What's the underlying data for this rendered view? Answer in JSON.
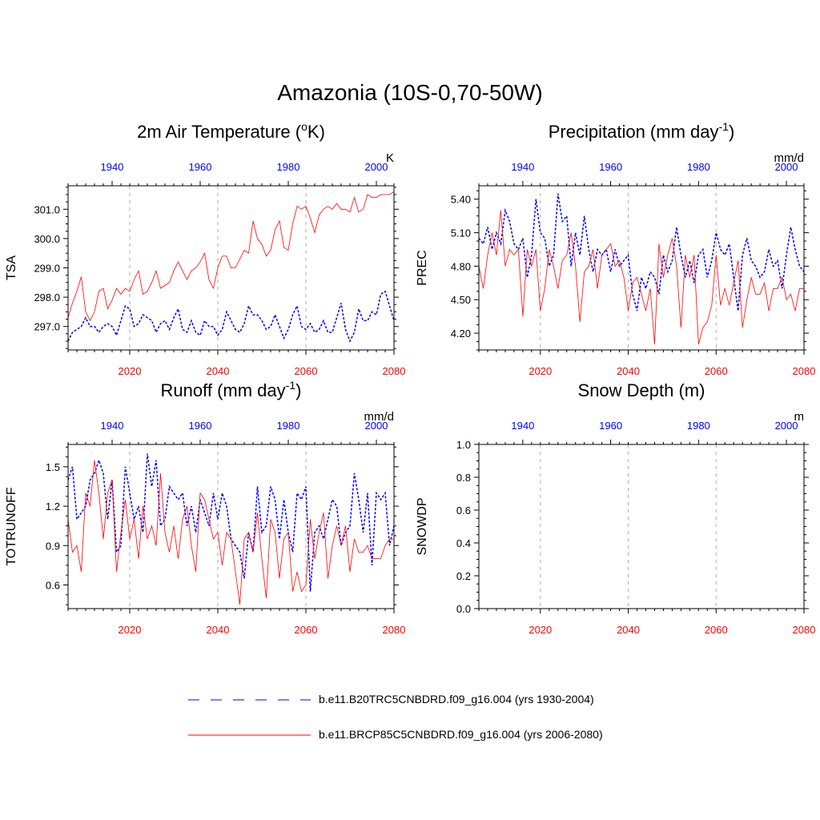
{
  "title": "Amazonia (10S-0,70-50W)",
  "colors": {
    "historical": "#0000ff",
    "future": "#ff0000",
    "grid": "#aaaaaa"
  },
  "legend": [
    {
      "label": "b.e11.B20TRC5CNBDRD.f09_g16.004 (yrs 1930-2004)",
      "color": "#0000ff",
      "style": "dashed"
    },
    {
      "label": "b.e11.BRCP85C5CNBDRD.f09_g16.004 (yrs 2006-2080)",
      "color": "#ff0000",
      "style": "solid"
    }
  ],
  "chart_data": [
    {
      "type": "line",
      "title": "2m Air Temperature (",
      "title_sup": "o",
      "title_after": "K)",
      "unit": "K",
      "ylabel": "TSA",
      "ylim": [
        296.2,
        301.8
      ],
      "yticks": [
        297.0,
        298.0,
        299.0,
        300.0,
        301.0
      ],
      "ytick_labels": [
        "297.0",
        "298.0",
        "299.0",
        "300.0",
        "301.0"
      ],
      "bottom_axis": {
        "range": [
          2006,
          2080
        ],
        "ticks": [
          2020,
          2040,
          2060,
          2080
        ],
        "labels": [
          "2020",
          "2040",
          "2060",
          "2080"
        ]
      },
      "top_axis": {
        "range": [
          1930,
          2004
        ],
        "ticks": [
          1940,
          1960,
          1980,
          2000
        ],
        "labels": [
          "1940",
          "1960",
          "1980",
          "2000"
        ]
      },
      "series": [
        {
          "name": "b.e11.B20TRC5CNBDRD.f09_g16.004 (yrs 1930-2004)",
          "axis": "top",
          "style": "dashed",
          "values": [
            296.5,
            296.8,
            296.9,
            297.0,
            297.3,
            297.0,
            297.0,
            296.8,
            297.0,
            297.1,
            297.0,
            296.7,
            297.2,
            297.7,
            297.6,
            297.0,
            297.1,
            297.4,
            297.3,
            297.2,
            296.8,
            297.1,
            297.2,
            296.9,
            297.3,
            297.6,
            296.9,
            296.8,
            297.2,
            296.8,
            296.7,
            297.2,
            297.0,
            297.0,
            296.7,
            296.9,
            297.5,
            297.2,
            296.9,
            296.8,
            297.1,
            297.7,
            297.4,
            297.4,
            297.2,
            296.9,
            297.0,
            297.4,
            297.0,
            296.6,
            296.9,
            297.4,
            297.7,
            297.0,
            296.9,
            297.1,
            296.8,
            296.9,
            297.2,
            296.8,
            296.8,
            297.3,
            297.8,
            296.9,
            296.5,
            296.8,
            297.6,
            297.2,
            297.2,
            297.5,
            297.4,
            298.1,
            298.2,
            297.7,
            297.2
          ]
        },
        {
          "name": "b.e11.BRCP85C5CNBDRD.f09_g16.004 (yrs 2006-2080)",
          "axis": "bottom",
          "style": "solid",
          "values": [
            297.3,
            297.8,
            298.2,
            298.7,
            297.5,
            297.2,
            297.5,
            298.2,
            298.3,
            297.6,
            297.9,
            298.3,
            298.1,
            298.3,
            298.2,
            298.6,
            298.9,
            298.1,
            298.2,
            298.5,
            298.9,
            298.3,
            298.4,
            298.5,
            298.9,
            299.2,
            298.9,
            298.6,
            298.9,
            299.0,
            299.2,
            299.5,
            298.6,
            298.3,
            299.0,
            299.4,
            299.4,
            299.0,
            299.0,
            299.3,
            299.6,
            299.5,
            300.6,
            300.0,
            299.8,
            299.4,
            299.6,
            300.3,
            300.6,
            299.7,
            299.6,
            300.5,
            301.1,
            301.0,
            301.1,
            300.7,
            300.2,
            300.8,
            301.0,
            301.1,
            301.0,
            301.2,
            301.0,
            301.0,
            300.9,
            301.4,
            300.9,
            301.0,
            301.5,
            301.4,
            301.4,
            301.5,
            301.5,
            301.5,
            301.6
          ]
        }
      ]
    },
    {
      "type": "line",
      "title": "Precipitation (mm day",
      "title_sup": "-1",
      "title_after": ")",
      "unit": "mm/d",
      "ylabel": "PREC",
      "ylim": [
        4.05,
        5.52
      ],
      "yticks": [
        4.2,
        4.5,
        4.8,
        5.1,
        5.4
      ],
      "ytick_labels": [
        "4.20",
        "4.50",
        "4.80",
        "5.10",
        "5.40"
      ],
      "bottom_axis": {
        "range": [
          2006,
          2080
        ],
        "ticks": [
          2020,
          2040,
          2060,
          2080
        ],
        "labels": [
          "2020",
          "2040",
          "2060",
          "2080"
        ]
      },
      "top_axis": {
        "range": [
          1930,
          2004
        ],
        "ticks": [
          1940,
          1960,
          1980,
          2000
        ],
        "labels": [
          "1940",
          "1960",
          "1980",
          "2000"
        ]
      },
      "series": [
        {
          "name": "b.e11.B20TRC5CNBDRD.f09_g16.004 (yrs 1930-2004)",
          "axis": "top",
          "style": "dashed",
          "values": [
            5.05,
            5.0,
            5.15,
            4.95,
            5.1,
            5.0,
            5.3,
            5.2,
            5.0,
            4.95,
            5.05,
            4.7,
            4.9,
            5.4,
            5.1,
            5.05,
            4.8,
            4.9,
            5.45,
            5.2,
            5.25,
            4.8,
            5.1,
            4.9,
            5.25,
            4.95,
            4.75,
            4.95,
            4.9,
            4.95,
            4.75,
            4.95,
            4.8,
            4.85,
            4.9,
            4.55,
            4.4,
            4.7,
            4.6,
            4.75,
            4.7,
            4.55,
            4.9,
            4.75,
            4.85,
            5.15,
            4.9,
            4.7,
            4.85,
            4.65,
            4.9,
            4.95,
            4.7,
            4.85,
            5.1,
            4.95,
            4.9,
            5.0,
            4.7,
            4.4,
            4.9,
            5.05,
            4.85,
            4.8,
            4.7,
            4.75,
            4.95,
            4.8,
            4.85,
            4.6,
            4.9,
            5.15,
            4.95,
            4.8,
            4.75
          ]
        },
        {
          "name": "b.e11.BRCP85C5CNBDRD.f09_g16.004 (yrs 2006-2080)",
          "axis": "bottom",
          "style": "solid",
          "values": [
            4.8,
            4.6,
            4.9,
            5.1,
            4.9,
            5.3,
            4.8,
            4.95,
            4.9,
            4.95,
            4.35,
            4.95,
            4.8,
            4.95,
            4.4,
            4.6,
            4.95,
            4.8,
            4.6,
            4.85,
            4.9,
            5.1,
            4.8,
            4.3,
            4.75,
            4.8,
            4.95,
            4.6,
            4.9,
            4.95,
            5.0,
            4.8,
            4.85,
            4.7,
            4.4,
            4.65,
            4.7,
            4.55,
            4.4,
            4.6,
            4.1,
            5.0,
            4.7,
            4.9,
            5.05,
            4.8,
            4.25,
            4.9,
            4.7,
            4.9,
            4.1,
            4.25,
            4.3,
            4.45,
            4.9,
            4.45,
            4.6,
            4.45,
            4.65,
            4.85,
            4.25,
            4.5,
            4.7,
            4.55,
            4.55,
            4.65,
            4.4,
            4.6,
            4.6,
            4.7,
            4.5,
            4.55,
            4.4,
            4.6,
            4.6
          ]
        }
      ]
    },
    {
      "type": "line",
      "title": "Runoff (mm day",
      "title_sup": "-1",
      "title_after": ")",
      "unit": "mm/d",
      "ylabel": "TOTRUNOFF",
      "ylim": [
        0.42,
        1.67
      ],
      "yticks": [
        0.6,
        0.9,
        1.2,
        1.5
      ],
      "ytick_labels": [
        "0.6",
        "0.9",
        "1.2",
        "1.5"
      ],
      "bottom_axis": {
        "range": [
          2006,
          2080
        ],
        "ticks": [
          2020,
          2040,
          2060,
          2080
        ],
        "labels": [
          "2020",
          "2040",
          "2060",
          "2080"
        ]
      },
      "top_axis": {
        "range": [
          1930,
          2004
        ],
        "ticks": [
          1940,
          1960,
          1980,
          2000
        ],
        "labels": [
          "1940",
          "1960",
          "1980",
          "2000"
        ]
      },
      "series": [
        {
          "name": "b.e11.B20TRC5CNBDRD.f09_g16.004 (yrs 1930-2004)",
          "axis": "top",
          "style": "dashed",
          "values": [
            1.4,
            1.5,
            1.1,
            1.15,
            1.2,
            1.4,
            1.45,
            1.55,
            1.45,
            1.1,
            1.4,
            0.85,
            0.9,
            1.5,
            1.3,
            1.1,
            1.2,
            1.0,
            1.6,
            1.35,
            1.55,
            1.05,
            1.1,
            1.35,
            1.3,
            1.25,
            1.3,
            1.05,
            1.2,
            1.0,
            1.25,
            1.15,
            1.05,
            1.3,
            1.1,
            1.3,
            1.2,
            0.95,
            0.9,
            0.85,
            0.65,
            1.0,
            0.85,
            1.35,
            1.0,
            1.05,
            1.35,
            1.25,
            0.95,
            1.25,
            1.0,
            0.85,
            1.3,
            1.25,
            1.35,
            0.55,
            1.0,
            1.05,
            0.95,
            1.1,
            1.25,
            1.2,
            0.9,
            1.0,
            1.05,
            1.45,
            1.25,
            1.0,
            1.3,
            0.75,
            1.3,
            1.25,
            1.3,
            0.9,
            1.05
          ]
        },
        {
          "name": "b.e11.BRCP85C5CNBDRD.f09_g16.004 (yrs 2006-2080)",
          "axis": "bottom",
          "style": "solid",
          "values": [
            1.1,
            0.85,
            0.9,
            0.7,
            1.3,
            1.2,
            1.55,
            1.3,
            0.95,
            1.3,
            1.4,
            0.7,
            1.0,
            1.25,
            0.95,
            1.1,
            0.8,
            1.2,
            0.95,
            1.05,
            0.9,
            1.45,
            1.0,
            0.85,
            1.05,
            0.8,
            1.1,
            1.2,
            0.9,
            0.7,
            1.3,
            1.25,
            1.1,
            0.95,
            1.0,
            0.75,
            1.0,
            0.95,
            0.7,
            0.45,
            0.95,
            1.0,
            0.85,
            1.15,
            0.8,
            0.5,
            1.1,
            1.0,
            0.65,
            0.95,
            1.0,
            0.55,
            0.7,
            0.55,
            0.6,
            1.1,
            0.8,
            1.0,
            1.15,
            0.65,
            0.9,
            1.05,
            0.9,
            1.05,
            0.7,
            0.95,
            0.85,
            0.85,
            0.9,
            0.8,
            0.8,
            0.8,
            0.9,
            0.95,
            0.95
          ]
        }
      ]
    },
    {
      "type": "line",
      "title": "Snow Depth (m)",
      "title_sup": "",
      "title_after": "",
      "unit": "m",
      "ylabel": "SNOWDP",
      "ylim": [
        0.0,
        1.0
      ],
      "yticks": [
        0.0,
        0.2,
        0.4,
        0.6,
        0.8,
        1.0
      ],
      "ytick_labels": [
        "0.0",
        "0.2",
        "0.4",
        "0.6",
        "0.8",
        "1.0"
      ],
      "bottom_axis": {
        "range": [
          2006,
          2080
        ],
        "ticks": [
          2020,
          2040,
          2060,
          2080
        ],
        "labels": [
          "2020",
          "2040",
          "2060",
          "2080"
        ]
      },
      "top_axis": {
        "range": [
          1930,
          2004
        ],
        "ticks": [
          1940,
          1960,
          1980,
          2000
        ],
        "labels": [
          "1940",
          "1960",
          "1980",
          "2000"
        ]
      },
      "series": []
    }
  ]
}
